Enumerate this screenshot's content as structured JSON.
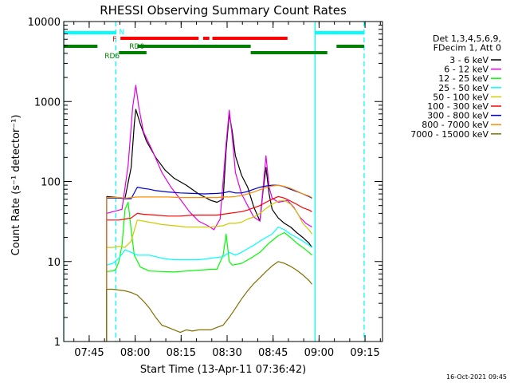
{
  "chart_data": {
    "type": "line",
    "title": "RHESSI Observing Summary Count Rates",
    "xlabel": "Start Time (13-Apr-11 07:36:42)",
    "ylabel": "Count Rate (s⁻¹ detector⁻¹)",
    "ylog": true,
    "ylim": [
      1,
      10000
    ],
    "xlim_minutes": [
      0,
      104
    ],
    "x_unit": "minutes after 07:36:42",
    "x_ticks": [
      {
        "label": "07:45",
        "minutes": 8.3
      },
      {
        "label": "08:00",
        "minutes": 23.3
      },
      {
        "label": "08:15",
        "minutes": 38.3
      },
      {
        "label": "08:30",
        "minutes": 53.3
      },
      {
        "label": "08:45",
        "minutes": 68.3
      },
      {
        "label": "09:00",
        "minutes": 83.3
      },
      {
        "label": "09:15",
        "minutes": 98.3
      }
    ],
    "y_ticks": [
      {
        "label": "1",
        "value": 1
      },
      {
        "label": "10",
        "value": 10
      },
      {
        "label": "100",
        "value": 100
      },
      {
        "label": "1000",
        "value": 1000
      },
      {
        "label": "10000",
        "value": 10000
      }
    ],
    "legend_header": [
      "Det 1,3,4,5,6,9,",
      "FDecim 1, Att 0"
    ],
    "legend_position": "right",
    "series": [
      {
        "name": "3 - 6 keV",
        "color": "#000000",
        "points": [
          [
            14,
            65
          ],
          [
            20,
            62
          ],
          [
            22,
            150
          ],
          [
            23,
            520
          ],
          [
            23.5,
            800
          ],
          [
            25,
            520
          ],
          [
            27,
            320
          ],
          [
            30,
            200
          ],
          [
            33,
            140
          ],
          [
            36,
            110
          ],
          [
            40,
            90
          ],
          [
            44,
            70
          ],
          [
            48,
            58
          ],
          [
            50,
            55
          ],
          [
            52,
            60
          ],
          [
            53,
            250
          ],
          [
            54,
            700
          ],
          [
            55,
            420
          ],
          [
            56,
            210
          ],
          [
            58,
            120
          ],
          [
            60,
            85
          ],
          [
            62,
            48
          ],
          [
            64,
            32
          ],
          [
            65,
            75
          ],
          [
            66,
            150
          ],
          [
            67,
            70
          ],
          [
            68,
            45
          ],
          [
            70,
            35
          ],
          [
            72,
            30
          ],
          [
            74,
            27
          ],
          [
            76,
            23
          ],
          [
            78,
            20
          ],
          [
            80,
            17
          ],
          [
            81,
            15
          ]
        ]
      },
      {
        "name": "6 - 12 keV",
        "color": "#e600e6",
        "points": [
          [
            14,
            40
          ],
          [
            19,
            45
          ],
          [
            21,
            160
          ],
          [
            22.5,
            850
          ],
          [
            23.5,
            1600
          ],
          [
            24.5,
            850
          ],
          [
            26,
            420
          ],
          [
            29,
            240
          ],
          [
            32,
            130
          ],
          [
            35,
            85
          ],
          [
            38,
            60
          ],
          [
            41,
            42
          ],
          [
            44,
            32
          ],
          [
            47,
            28
          ],
          [
            49,
            25
          ],
          [
            51,
            34
          ],
          [
            53,
            300
          ],
          [
            54,
            780
          ],
          [
            55,
            360
          ],
          [
            56,
            130
          ],
          [
            58,
            70
          ],
          [
            60,
            50
          ],
          [
            62,
            36
          ],
          [
            64,
            32
          ],
          [
            65,
            80
          ],
          [
            66,
            210
          ],
          [
            67,
            85
          ],
          [
            68,
            62
          ],
          [
            70,
            55
          ],
          [
            73,
            58
          ],
          [
            75,
            48
          ],
          [
            77,
            36
          ],
          [
            79,
            30
          ],
          [
            81,
            27
          ]
        ]
      },
      {
        "name": "12 - 25 keV",
        "color": "#00ff00",
        "points": [
          [
            14,
            7.5
          ],
          [
            16,
            7.6
          ],
          [
            17,
            8
          ],
          [
            18,
            10
          ],
          [
            19,
            16
          ],
          [
            20,
            45
          ],
          [
            21,
            55
          ],
          [
            22,
            25
          ],
          [
            23,
            12
          ],
          [
            25,
            8.5
          ],
          [
            28,
            7.6
          ],
          [
            32,
            7.5
          ],
          [
            36,
            7.4
          ],
          [
            40,
            7.6
          ],
          [
            44,
            7.8
          ],
          [
            48,
            8
          ],
          [
            50,
            8
          ],
          [
            52,
            12
          ],
          [
            53,
            22
          ],
          [
            54,
            10
          ],
          [
            55,
            9
          ],
          [
            58,
            9.5
          ],
          [
            61,
            11
          ],
          [
            64,
            13
          ],
          [
            67,
            17
          ],
          [
            70,
            21
          ],
          [
            72,
            23
          ],
          [
            74,
            20
          ],
          [
            76,
            17
          ],
          [
            78,
            15
          ],
          [
            80,
            13
          ],
          [
            81,
            12
          ]
        ]
      },
      {
        "name": "25 - 50 keV",
        "color": "#00ffff",
        "points": [
          [
            14,
            9
          ],
          [
            16,
            9.5
          ],
          [
            18,
            11
          ],
          [
            20,
            14
          ],
          [
            22,
            13
          ],
          [
            24,
            12
          ],
          [
            28,
            12
          ],
          [
            32,
            11
          ],
          [
            36,
            10.5
          ],
          [
            40,
            10.5
          ],
          [
            44,
            10.5
          ],
          [
            48,
            11
          ],
          [
            52,
            11.5
          ],
          [
            54,
            13
          ],
          [
            56,
            12
          ],
          [
            58,
            13
          ],
          [
            60,
            14.5
          ],
          [
            62,
            16
          ],
          [
            64,
            18
          ],
          [
            66,
            20
          ],
          [
            68,
            22
          ],
          [
            70,
            27
          ],
          [
            72,
            25
          ],
          [
            74,
            22
          ],
          [
            76,
            20
          ],
          [
            78,
            18
          ],
          [
            80,
            16
          ],
          [
            81,
            15
          ]
        ]
      },
      {
        "name": "50 - 100 keV",
        "color": "#cccc00",
        "points": [
          [
            14,
            15
          ],
          [
            16,
            15
          ],
          [
            18,
            15.5
          ],
          [
            20,
            15
          ],
          [
            22,
            18
          ],
          [
            24,
            33
          ],
          [
            26,
            32
          ],
          [
            28,
            31
          ],
          [
            30,
            30
          ],
          [
            32,
            29
          ],
          [
            36,
            28
          ],
          [
            40,
            27
          ],
          [
            44,
            27
          ],
          [
            48,
            27
          ],
          [
            52,
            28
          ],
          [
            54,
            30
          ],
          [
            56,
            30
          ],
          [
            58,
            31
          ],
          [
            60,
            34
          ],
          [
            62,
            36
          ],
          [
            64,
            40
          ],
          [
            66,
            46
          ],
          [
            68,
            52
          ],
          [
            70,
            57
          ],
          [
            72,
            58
          ],
          [
            74,
            52
          ],
          [
            76,
            42
          ],
          [
            78,
            30
          ],
          [
            80,
            25
          ],
          [
            81,
            22
          ]
        ]
      },
      {
        "name": "100 - 300 keV",
        "color": "#ff0000",
        "points": [
          [
            14,
            33
          ],
          [
            16,
            33
          ],
          [
            18,
            33
          ],
          [
            20,
            34
          ],
          [
            22,
            35
          ],
          [
            24,
            40
          ],
          [
            26,
            39
          ],
          [
            30,
            38
          ],
          [
            34,
            37
          ],
          [
            38,
            37
          ],
          [
            42,
            38
          ],
          [
            46,
            38
          ],
          [
            50,
            38
          ],
          [
            52,
            39
          ],
          [
            54,
            40
          ],
          [
            56,
            41
          ],
          [
            58,
            42
          ],
          [
            60,
            44
          ],
          [
            62,
            47
          ],
          [
            64,
            50
          ],
          [
            66,
            55
          ],
          [
            68,
            60
          ],
          [
            70,
            65
          ],
          [
            72,
            62
          ],
          [
            74,
            57
          ],
          [
            76,
            52
          ],
          [
            78,
            47
          ],
          [
            80,
            44
          ],
          [
            81,
            42
          ]
        ]
      },
      {
        "name": "300 - 800 keV",
        "color": "#0000cc",
        "points": [
          [
            14,
            62
          ],
          [
            16,
            62
          ],
          [
            18,
            62
          ],
          [
            20,
            61
          ],
          [
            22,
            61
          ],
          [
            24,
            85
          ],
          [
            26,
            82
          ],
          [
            28,
            80
          ],
          [
            30,
            77
          ],
          [
            34,
            74
          ],
          [
            38,
            72
          ],
          [
            42,
            71
          ],
          [
            46,
            70
          ],
          [
            50,
            71
          ],
          [
            52,
            72
          ],
          [
            54,
            75
          ],
          [
            56,
            72
          ],
          [
            58,
            72
          ],
          [
            60,
            75
          ],
          [
            62,
            80
          ],
          [
            64,
            85
          ],
          [
            66,
            88
          ],
          [
            68,
            90
          ],
          [
            70,
            90
          ],
          [
            72,
            86
          ],
          [
            74,
            80
          ],
          [
            76,
            75
          ],
          [
            78,
            70
          ],
          [
            80,
            65
          ],
          [
            81,
            62
          ]
        ]
      },
      {
        "name": "800 - 7000 keV",
        "color": "#ff8c00",
        "points": [
          [
            14,
            63
          ],
          [
            16,
            63
          ],
          [
            18,
            63
          ],
          [
            20,
            62
          ],
          [
            22,
            63
          ],
          [
            24,
            64
          ],
          [
            26,
            64
          ],
          [
            30,
            64
          ],
          [
            34,
            64
          ],
          [
            38,
            63
          ],
          [
            42,
            63
          ],
          [
            46,
            63
          ],
          [
            50,
            63
          ],
          [
            52,
            64
          ],
          [
            54,
            64
          ],
          [
            56,
            65
          ],
          [
            58,
            67
          ],
          [
            60,
            70
          ],
          [
            62,
            74
          ],
          [
            64,
            79
          ],
          [
            66,
            84
          ],
          [
            68,
            88
          ],
          [
            70,
            90
          ],
          [
            72,
            87
          ],
          [
            74,
            82
          ],
          [
            76,
            76
          ],
          [
            78,
            70
          ],
          [
            80,
            66
          ],
          [
            81,
            63
          ]
        ]
      },
      {
        "name": "7000 - 15000 keV",
        "color": "#807000",
        "points": [
          [
            14,
            4.5
          ],
          [
            16,
            4.5
          ],
          [
            18,
            4.4
          ],
          [
            20,
            4.3
          ],
          [
            22,
            4.1
          ],
          [
            24,
            3.8
          ],
          [
            26,
            3.2
          ],
          [
            28,
            2.6
          ],
          [
            30,
            2.0
          ],
          [
            32,
            1.6
          ],
          [
            34,
            1.5
          ],
          [
            36,
            1.4
          ],
          [
            38,
            1.3
          ],
          [
            40,
            1.4
          ],
          [
            42,
            1.35
          ],
          [
            44,
            1.4
          ],
          [
            46,
            1.4
          ],
          [
            48,
            1.4
          ],
          [
            50,
            1.5
          ],
          [
            52,
            1.6
          ],
          [
            54,
            2
          ],
          [
            56,
            2.6
          ],
          [
            58,
            3.4
          ],
          [
            60,
            4.3
          ],
          [
            62,
            5.3
          ],
          [
            64,
            6.3
          ],
          [
            66,
            7.5
          ],
          [
            68,
            8.8
          ],
          [
            70,
            10
          ],
          [
            72,
            9.5
          ],
          [
            74,
            8.7
          ],
          [
            76,
            7.8
          ],
          [
            78,
            6.8
          ],
          [
            80,
            5.8
          ],
          [
            81,
            5.2
          ]
        ]
      }
    ],
    "flag_bars": [
      {
        "label": "N",
        "color": "#00ffff",
        "segments": [
          [
            0,
            17
          ],
          [
            82,
            98
          ]
        ]
      },
      {
        "label": "F",
        "color": "#ff0000",
        "segments": [
          [
            18.5,
            44
          ],
          [
            45.5,
            47.5
          ],
          [
            48.5,
            73
          ]
        ]
      },
      {
        "label": "RD0",
        "color": "#008000",
        "segments": [
          [
            0,
            11
          ],
          [
            24,
            61
          ],
          [
            89,
            98
          ]
        ]
      },
      {
        "label": "RD6",
        "color": "#008000",
        "segments": [
          [
            18,
            27
          ],
          [
            61,
            86
          ]
        ]
      }
    ],
    "vertical_lines": [
      {
        "color": "#00ffff",
        "minutes": 0,
        "style": "solid"
      },
      {
        "color": "#00ffff",
        "minutes": 17,
        "style": "dashed"
      },
      {
        "color": "#00ffff",
        "minutes": 82,
        "style": "solid"
      },
      {
        "color": "#00ffff",
        "minutes": 98,
        "style": "dashed"
      }
    ],
    "footer_date": "16-Oct-2021 09:45"
  }
}
